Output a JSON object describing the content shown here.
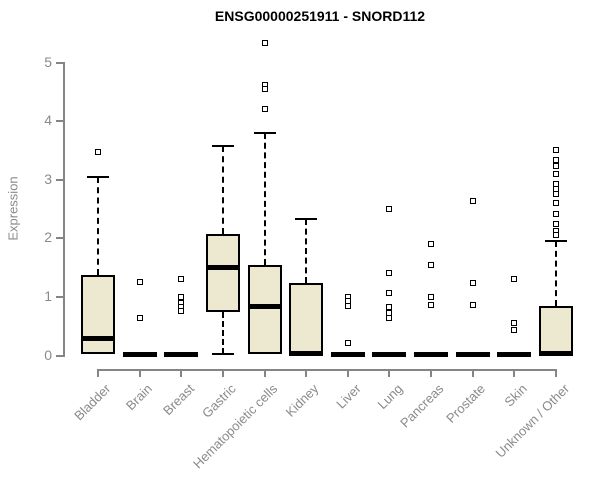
{
  "chart_data": {
    "type": "boxplot",
    "title": "ENSG00000251911 - SNORD112",
    "ylabel": "Expression",
    "xlabel": "",
    "ylim": [
      0,
      5.4
    ],
    "yticks": [
      0,
      1,
      2,
      3,
      4,
      5
    ],
    "grid": false,
    "legend_position": "none",
    "categories": [
      "Bladder",
      "Brain",
      "Breast",
      "Gastric",
      "Hematopoietic cells",
      "Kidney",
      "Liver",
      "Lung",
      "Pancreas",
      "Prostate",
      "Skin",
      "Unknown / Other"
    ],
    "series": [
      {
        "name": "Bladder",
        "q1": 0.02,
        "median": 0.29,
        "q3": 1.38,
        "whisker_low": 0.02,
        "whisker_high": 3.05,
        "outliers": [
          3.48
        ]
      },
      {
        "name": "Brain",
        "q1": 0.0,
        "median": 0.02,
        "q3": 0.04,
        "whisker_low": 0.0,
        "whisker_high": 0.04,
        "outliers": [
          1.25,
          0.64
        ]
      },
      {
        "name": "Breast",
        "q1": 0.0,
        "median": 0.02,
        "q3": 0.04,
        "whisker_low": 0.0,
        "whisker_high": 0.04,
        "outliers": [
          1.31,
          1.0,
          0.9,
          0.83,
          0.76
        ]
      },
      {
        "name": "Gastric",
        "q1": 0.74,
        "median": 1.5,
        "q3": 2.08,
        "whisker_low": 0.02,
        "whisker_high": 3.58,
        "outliers": []
      },
      {
        "name": "Hematopoietic cells",
        "q1": 0.03,
        "median": 0.84,
        "q3": 1.55,
        "whisker_low": 0.03,
        "whisker_high": 3.8,
        "outliers": [
          5.33,
          4.62,
          4.55,
          4.2
        ]
      },
      {
        "name": "Kidney",
        "q1": 0.0,
        "median": 0.04,
        "q3": 1.23,
        "whisker_low": 0.0,
        "whisker_high": 2.33,
        "outliers": []
      },
      {
        "name": "Liver",
        "q1": 0.0,
        "median": 0.02,
        "q3": 0.04,
        "whisker_low": 0.0,
        "whisker_high": 0.04,
        "outliers": [
          1.0,
          0.93,
          0.85,
          0.22
        ]
      },
      {
        "name": "Lung",
        "q1": 0.0,
        "median": 0.02,
        "q3": 0.04,
        "whisker_low": 0.0,
        "whisker_high": 0.04,
        "outliers": [
          2.5,
          1.4,
          1.07,
          0.82,
          0.72,
          0.64
        ]
      },
      {
        "name": "Pancreas",
        "q1": 0.0,
        "median": 0.02,
        "q3": 0.04,
        "whisker_low": 0.0,
        "whisker_high": 0.04,
        "outliers": [
          1.9,
          1.55,
          0.99,
          0.87
        ]
      },
      {
        "name": "Prostate",
        "q1": 0.0,
        "median": 0.02,
        "q3": 0.04,
        "whisker_low": 0.0,
        "whisker_high": 0.04,
        "outliers": [
          2.64,
          1.23,
          0.87
        ]
      },
      {
        "name": "Skin",
        "q1": 0.0,
        "median": 0.02,
        "q3": 0.04,
        "whisker_low": 0.0,
        "whisker_high": 0.04,
        "outliers": [
          1.31,
          0.56,
          0.44
        ]
      },
      {
        "name": "Unknown / Other",
        "q1": 0.0,
        "median": 0.03,
        "q3": 0.84,
        "whisker_low": 0.0,
        "whisker_high": 1.96,
        "outliers": [
          3.5,
          3.33,
          3.24,
          3.1,
          2.93,
          2.84,
          2.76,
          2.61,
          2.42,
          2.25,
          2.12,
          2.05
        ]
      }
    ],
    "colors": {
      "box_fill": "#EDE8D0",
      "box_border": "#000000",
      "median": "#000000",
      "whisker": "#000000",
      "outlier_border": "#000000",
      "axis": "#858585",
      "tick_label": "#8a8a8a",
      "title": "#000000",
      "background": "#ffffff"
    }
  }
}
